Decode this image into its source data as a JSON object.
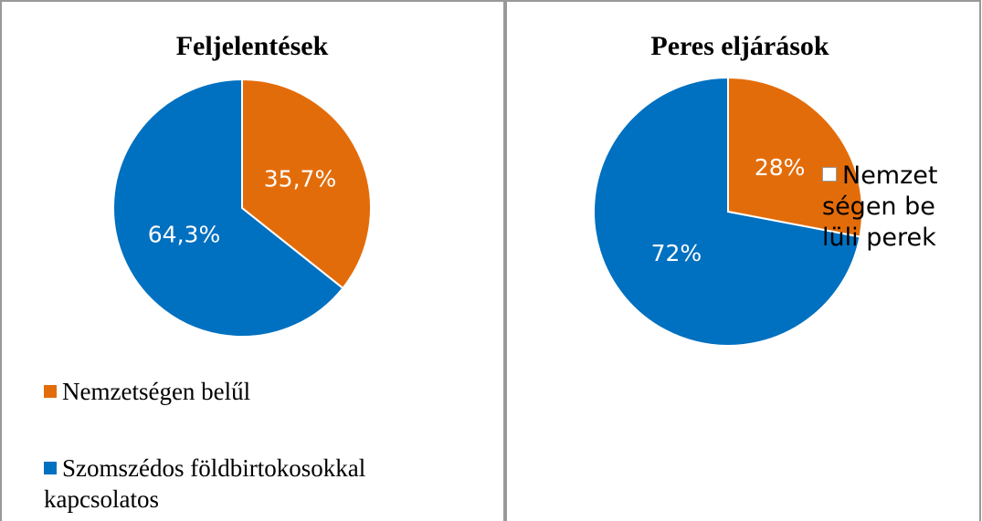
{
  "chart_data": [
    {
      "type": "pie",
      "title": "Feljelentések",
      "categories": [
        "Nemzetségen belűl",
        "Szomszédos földbirtokosokkal kapcsolatos"
      ],
      "values": [
        35.7,
        64.3
      ],
      "value_labels": [
        "35,7%",
        "64,3%"
      ],
      "colors": [
        "#e36c0a",
        "#0070c0"
      ],
      "legend": "bottom"
    },
    {
      "type": "pie",
      "title": "Peres eljárások",
      "categories": [
        "Nemzetségen belüli perek",
        null
      ],
      "values": [
        28,
        72
      ],
      "value_labels": [
        "28%",
        "72%"
      ],
      "colors": [
        "#e36c0a",
        "#0070c0"
      ],
      "legend": "right",
      "legend_marker_colors": [
        "#ffffff",
        null
      ]
    }
  ]
}
